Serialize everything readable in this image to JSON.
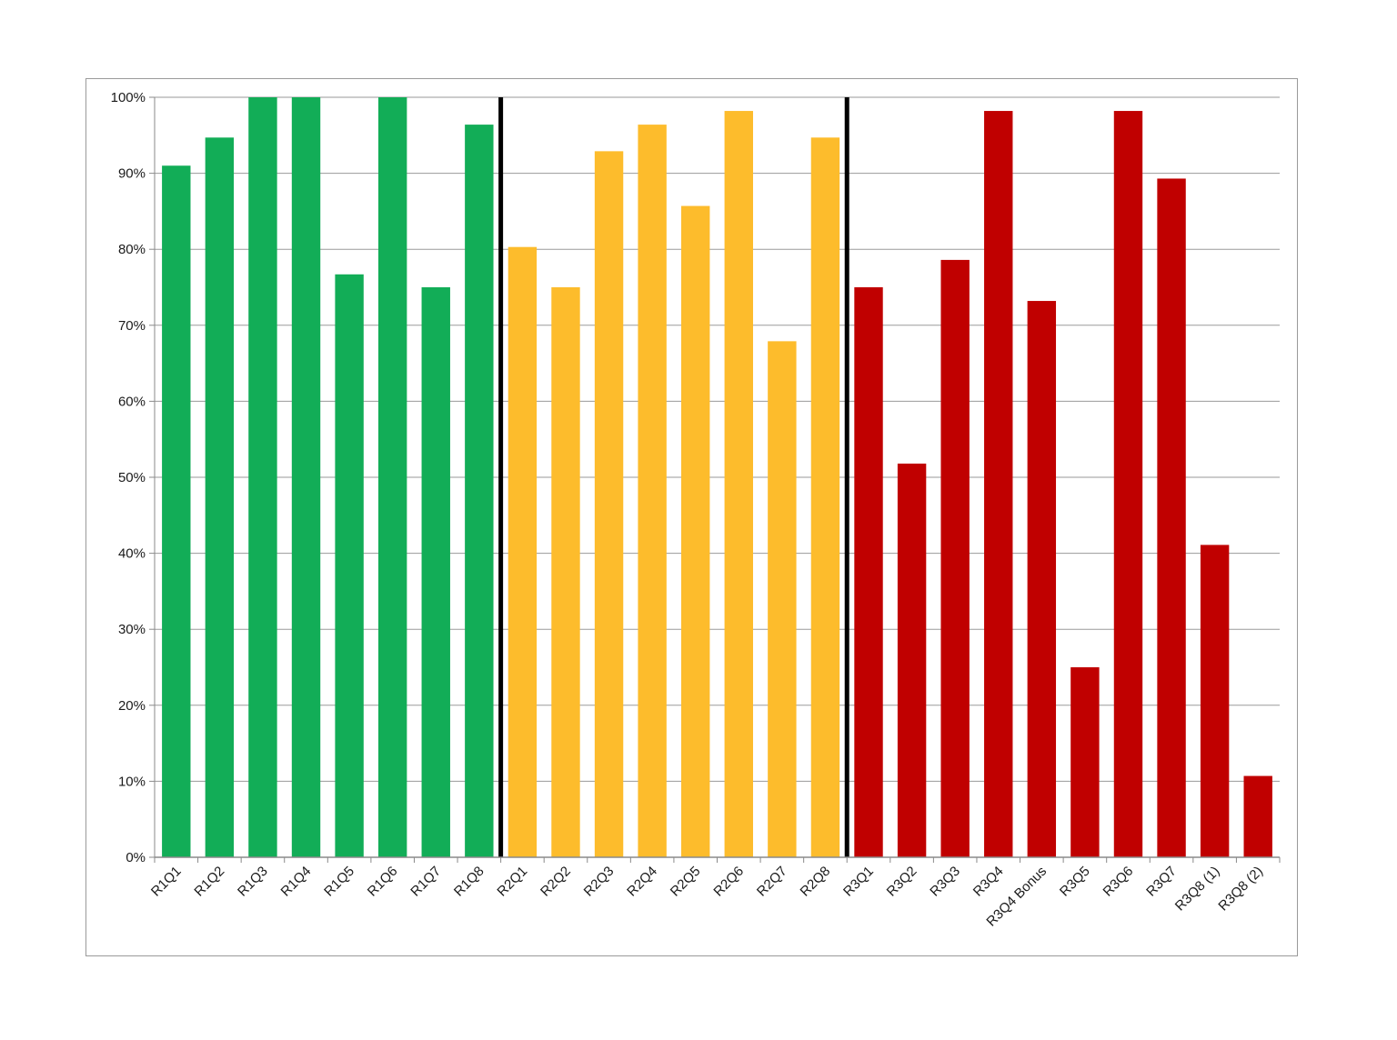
{
  "chart_data": {
    "type": "bar",
    "categories": [
      "R1Q1",
      "R1Q2",
      "R1Q3",
      "R1Q4",
      "R1Q5",
      "R1Q6",
      "R1Q7",
      "R1Q8",
      "R2Q1",
      "R2Q2",
      "R2Q3",
      "R2Q4",
      "R2Q5",
      "R2Q6",
      "R2Q7",
      "R2Q8",
      "R3Q1",
      "R3Q2",
      "R3Q3",
      "R3Q4",
      "R3Q4 Bonus",
      "R3Q5",
      "R3Q6",
      "R3Q7",
      "R3Q8 (1)",
      "R3Q8 (2)"
    ],
    "values": [
      91,
      94.7,
      100,
      100,
      76.7,
      100,
      75,
      96.4,
      80.3,
      75,
      92.9,
      96.4,
      85.7,
      98.2,
      67.9,
      94.7,
      75,
      51.8,
      78.6,
      98.2,
      73.2,
      25,
      98.2,
      89.3,
      41.1,
      10.7
    ],
    "groups": [
      {
        "categories": [
          "R1Q1",
          "R1Q2",
          "R1Q3",
          "R1Q4",
          "R1Q5",
          "R1Q6",
          "R1Q7",
          "R1Q8"
        ],
        "color": "#12ad57"
      },
      {
        "categories": [
          "R2Q1",
          "R2Q2",
          "R2Q3",
          "R2Q4",
          "R2Q5",
          "R2Q6",
          "R2Q7",
          "R2Q8"
        ],
        "color": "#fdbc2c"
      },
      {
        "categories": [
          "R3Q1",
          "R3Q2",
          "R3Q3",
          "R3Q4",
          "R3Q4 Bonus",
          "R3Q5",
          "R3Q6",
          "R3Q7",
          "R3Q8 (1)",
          "R3Q8 (2)"
        ],
        "color": "#c00000"
      }
    ],
    "separators_after": [
      "R1Q8",
      "R2Q8"
    ],
    "y_ticks": [
      "0%",
      "10%",
      "20%",
      "30%",
      "40%",
      "50%",
      "60%",
      "70%",
      "80%",
      "90%",
      "100%"
    ],
    "ylim": [
      0,
      100
    ],
    "grid": true,
    "legend": "none",
    "title": "",
    "xlabel": "",
    "ylabel": ""
  }
}
